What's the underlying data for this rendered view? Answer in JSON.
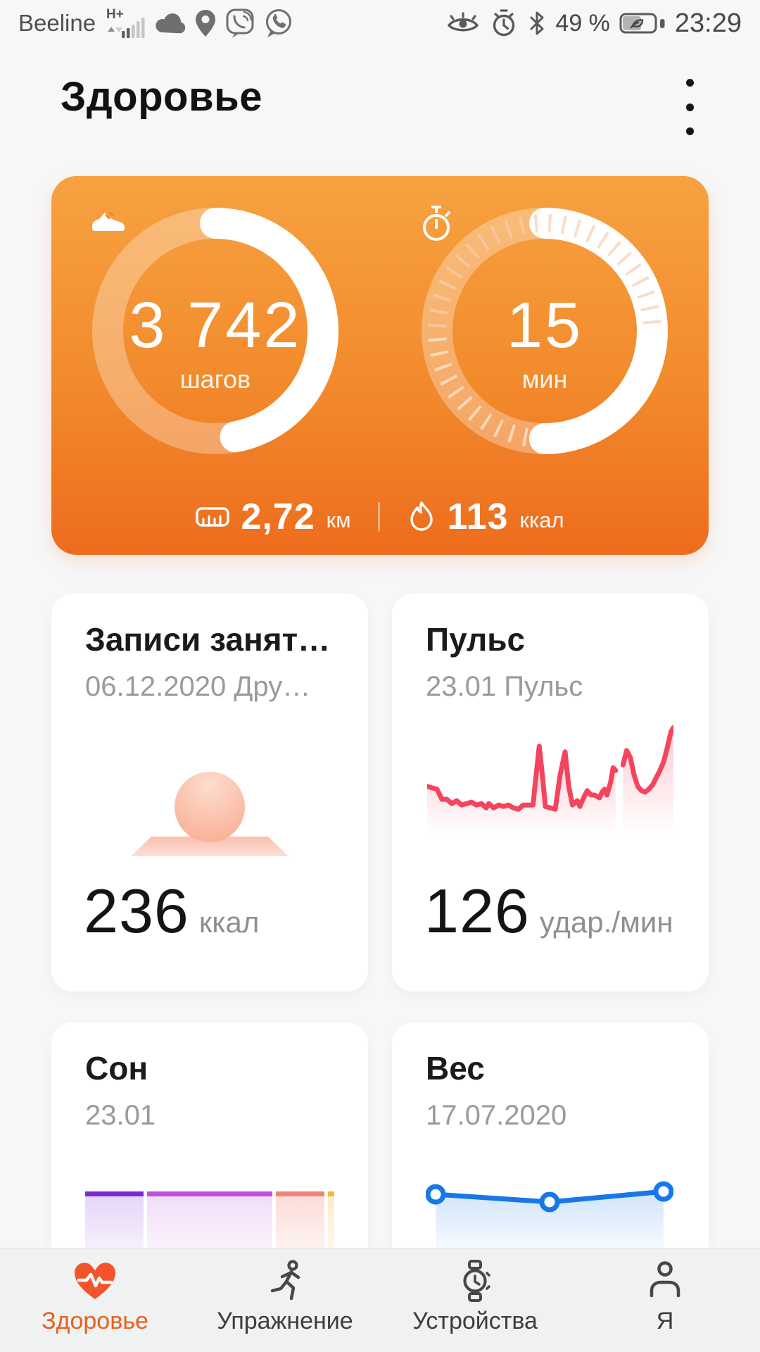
{
  "status_bar": {
    "carrier": "Beeline",
    "network": "H+",
    "battery_pct": "49 %",
    "time": "23:29",
    "icons_left": [
      "signal-icon",
      "cloud-icon",
      "location-icon",
      "viber-icon",
      "whatsapp-icon"
    ],
    "icons_right": [
      "eye-comfort-icon",
      "alarm-icon",
      "bluetooth-icon",
      "battery-icon"
    ]
  },
  "header": {
    "title": "Здоровье"
  },
  "activity_card": {
    "steps": {
      "value": "3 742",
      "unit": "шагов",
      "progress": 0.47,
      "icon": "shoe-icon"
    },
    "active_minutes": {
      "value": "15",
      "unit": "мин",
      "progress": 0.5,
      "icon": "stopwatch-icon"
    },
    "distance": {
      "value": "2,72",
      "unit": "км",
      "icon": "ruler-icon"
    },
    "calories": {
      "value": "113",
      "unit": "ккал",
      "icon": "flame-icon"
    }
  },
  "cards": {
    "exercise": {
      "title": "Записи занят…",
      "subtitle": "06.12.2020 Дру…",
      "value": "236",
      "unit": "ккал"
    },
    "pulse": {
      "title": "Пульс",
      "subtitle": "23.01 Пульс",
      "value": "126",
      "unit": "удар./мин"
    },
    "sleep": {
      "title": "Сон",
      "subtitle": "23.01"
    },
    "weight": {
      "title": "Вес",
      "subtitle": "17.07.2020"
    }
  },
  "chart_data": [
    {
      "id": "pulse",
      "type": "line",
      "title": "23.01 Пульс",
      "ylabel": "удар./мин",
      "ylim": [
        52,
        132
      ],
      "latest": 126,
      "color": "#f4455e",
      "grid": false,
      "segments": [
        {
          "x": [
            0,
            2,
            4,
            6,
            8,
            10,
            12,
            14,
            16,
            18,
            20,
            22,
            24,
            25,
            27,
            29,
            31,
            33,
            35,
            37,
            39,
            41,
            43,
            44,
            45.5,
            47,
            48,
            50,
            52,
            54,
            56,
            57.5,
            59,
            61,
            62,
            63.5,
            65,
            66.5,
            68,
            70,
            71,
            72,
            73,
            74.5,
            75.5,
            76.5
          ],
          "bpm": [
            86,
            85,
            84,
            77,
            77,
            74,
            76,
            73,
            74,
            75,
            73,
            74,
            71,
            74,
            71,
            73,
            72,
            73,
            71,
            70,
            73,
            73,
            73,
            90,
            114,
            90,
            72,
            71,
            70,
            94,
            110,
            86,
            73,
            76,
            72,
            78,
            83,
            80,
            80,
            78,
            82,
            84,
            80,
            89,
            99,
            97
          ]
        },
        {
          "x": [
            79.5,
            81,
            82.5,
            84,
            85.5,
            87,
            88.5,
            90,
            91.5,
            93,
            94.5,
            96,
            97.5,
            99,
            100
          ],
          "bpm": [
            101,
            111,
            106,
            94,
            86,
            83,
            82,
            84,
            87,
            92,
            97,
            103,
            113,
            124,
            127
          ]
        }
      ]
    },
    {
      "id": "sleep",
      "type": "bar",
      "title": "23.01",
      "orientation": "horizontal-stacked",
      "segments": [
        {
          "name": "deep",
          "width_pct": 24,
          "color": "#7c2ad0",
          "tint": "#e6d6f8"
        },
        {
          "name": "light",
          "width_pct": 51.5,
          "color": "#c44fdc",
          "tint": "#f2def8"
        },
        {
          "name": "awake",
          "width_pct": 20,
          "color": "#ee837b",
          "tint": "#fbddda"
        },
        {
          "name": "rem",
          "width_pct": 2.5,
          "color": "#f3ba37",
          "tint": "#fdecca"
        }
      ]
    },
    {
      "id": "weight",
      "type": "line",
      "title": "17.07.2020",
      "color": "#1877e8",
      "points_x_pct": [
        4,
        50,
        96
      ],
      "points_y_pct": [
        29,
        37,
        26
      ],
      "markers": "hollow-circle"
    }
  ],
  "nav": {
    "items": [
      {
        "label": "Здоровье",
        "icon": "heart-pulse-icon",
        "active": true
      },
      {
        "label": "Упражнение",
        "icon": "runner-icon",
        "active": false
      },
      {
        "label": "Устройства",
        "icon": "watch-icon",
        "active": false
      },
      {
        "label": "Я",
        "icon": "person-icon",
        "active": false
      }
    ]
  },
  "colors": {
    "card_orange_top": "#f7a241",
    "card_orange_bottom": "#ed6c1d",
    "pulse_pink": "#f4455e",
    "weight_blue": "#1877e8",
    "nav_active": "#e8611c"
  }
}
